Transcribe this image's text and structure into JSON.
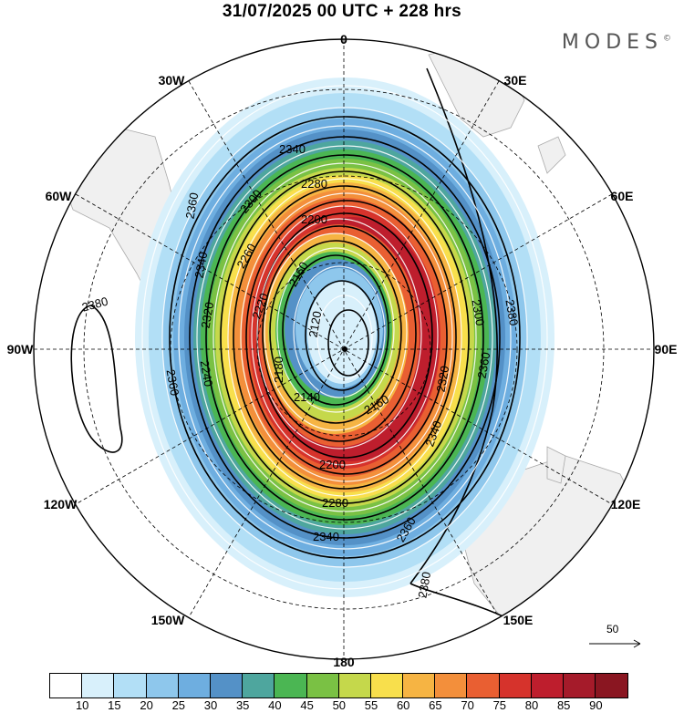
{
  "header": {
    "title": "31/07/2025  00 UTC  + 228 hrs",
    "brand": "MODES",
    "brand_mark": "©"
  },
  "map": {
    "projection": "polar-stereographic-south",
    "longitude_labels": [
      "0",
      "30E",
      "60E",
      "90E",
      "120E",
      "150E",
      "180",
      "150W",
      "120W",
      "90W",
      "60W",
      "30W"
    ],
    "contour_labels": [
      "2340",
      "2280",
      "2200",
      "2300",
      "2360",
      "2340",
      "2320",
      "2260",
      "2220",
      "2160",
      "2120",
      "2180",
      "2140",
      "2160",
      "2200",
      "2280",
      "2340",
      "2360",
      "2380",
      "2300",
      "2320",
      "2340",
      "2360",
      "2380",
      "2380",
      "2360",
      "2240"
    ],
    "reference_vector_label": "50",
    "colors": {
      "land": "#f0f0f0",
      "coast": "#aaaaaa",
      "grid": "#000000"
    }
  },
  "colorbar": {
    "colors": [
      "#ffffff",
      "#d8f0fb",
      "#b2dff6",
      "#8ec7ec",
      "#6eaee0",
      "#5491c7",
      "#4ea69e",
      "#4bb653",
      "#7ac144",
      "#c5d84b",
      "#f8df4c",
      "#f6b443",
      "#f38f3b",
      "#e95f32",
      "#d6332c",
      "#be1e2d",
      "#a51b2a",
      "#8a1621"
    ],
    "labels": [
      "10",
      "15",
      "20",
      "25",
      "30",
      "35",
      "40",
      "45",
      "50",
      "55",
      "60",
      "65",
      "70",
      "75",
      "80",
      "85",
      "90"
    ]
  }
}
